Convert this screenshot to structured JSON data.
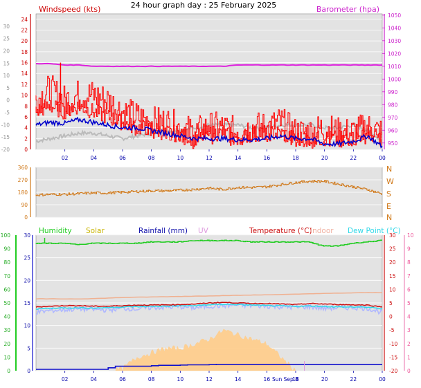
{
  "title": "24 hour graph day : 25 February 2025",
  "x_tick_labels": [
    "02",
    "04",
    "06",
    "08",
    "10",
    "12",
    "14",
    "16",
    "18",
    "20",
    "22",
    "00"
  ],
  "colors": {
    "wind": "#ff0000",
    "gust": "#ff0000",
    "avg_wind": "#0000cc",
    "barometer": "#dd22dd",
    "grey_trace": "#bbbbbb",
    "direction": "#d07818",
    "humidity": "#22cc22",
    "solar": "#c8b400",
    "rainfall": "#1010cc",
    "uv": "#dd99dd",
    "temperature": "#cc1111",
    "indoor": "#f0b090",
    "dew_point": "#30d8e8",
    "lavender": "#b0b8ff",
    "solar_fill": "#ffcc88",
    "plot_bg": "#e0e0e0"
  },
  "chart_data": [
    {
      "type": "line",
      "name": "wind-panel",
      "left_axis_title": "Windspeed (kts)",
      "right_axis_title": "Barometer (hpa)",
      "left_ticks": [
        24,
        22,
        20,
        18,
        16,
        14,
        12,
        10,
        8,
        6,
        4,
        2,
        0
      ],
      "left_ylim": [
        0,
        25
      ],
      "far_left_ticks": [
        30,
        25,
        20,
        15,
        10,
        5,
        0,
        -5,
        -10,
        -15,
        -20
      ],
      "far_left_ylim": [
        -20,
        35
      ],
      "right_ticks": [
        1050,
        1040,
        1030,
        1020,
        1010,
        1000,
        990,
        980,
        970,
        960,
        950
      ],
      "right_ylim": [
        945,
        1051
      ],
      "x_hours": [
        0,
        1,
        2,
        3,
        4,
        5,
        6,
        7,
        8,
        9,
        10,
        11,
        12,
        13,
        14,
        15,
        16,
        17,
        18,
        19,
        20,
        21,
        22,
        23,
        24
      ],
      "series": [
        {
          "key": "gust",
          "values": [
            9,
            11,
            9,
            10,
            10,
            9,
            7,
            6,
            5,
            5,
            4,
            3,
            4,
            4,
            3,
            4,
            4,
            5,
            3,
            3,
            4,
            3,
            3,
            4,
            3
          ]
        },
        {
          "key": "wind",
          "values": [
            7,
            8,
            7,
            8,
            7,
            6,
            5,
            4,
            4,
            3,
            3,
            2,
            3,
            3,
            2,
            3,
            3,
            3,
            2,
            2,
            2,
            2,
            2,
            3,
            2
          ]
        },
        {
          "key": "avg_wind",
          "values": [
            4.5,
            5,
            4.8,
            5.5,
            5,
            4.5,
            4,
            4,
            3.5,
            3,
            2.5,
            2,
            2,
            2,
            1.8,
            1.8,
            2,
            2.5,
            2,
            2,
            1,
            1,
            1.5,
            2.5,
            0.5
          ]
        },
        {
          "key": "barometer",
          "values": [
            1012,
            1012,
            1011,
            1011,
            1010,
            1010,
            1010,
            1010,
            1010,
            1010,
            1010,
            1010,
            1010,
            1010,
            1011,
            1011,
            1011,
            1011,
            1011,
            1011,
            1011,
            1011,
            1011,
            1011,
            1011
          ]
        },
        {
          "key": "grey_trace",
          "values": [
            1.5,
            2,
            2.5,
            3,
            3,
            2.5,
            2,
            2.5,
            3,
            3.5,
            3.5,
            4,
            4.5,
            4.5,
            4.5,
            4,
            4,
            4.5,
            4.5,
            4.5,
            4,
            4,
            4.5,
            3.5,
            1.5
          ]
        }
      ],
      "spike": {
        "hour": 1.7,
        "value": 16
      }
    },
    {
      "type": "line",
      "name": "wind-direction-panel",
      "left_ticks": [
        360,
        270,
        180,
        90,
        0
      ],
      "left_ylim": [
        0,
        360
      ],
      "right_ticks": [
        "N",
        "W",
        "S",
        "E",
        "N"
      ],
      "x_hours": [
        0,
        1,
        2,
        3,
        4,
        5,
        6,
        7,
        8,
        9,
        10,
        11,
        12,
        13,
        14,
        15,
        16,
        17,
        18,
        19,
        20,
        21,
        22,
        23,
        24
      ],
      "series": [
        {
          "key": "direction",
          "values": [
            160,
            165,
            165,
            170,
            175,
            175,
            180,
            185,
            190,
            190,
            195,
            200,
            210,
            200,
            215,
            215,
            220,
            235,
            250,
            260,
            260,
            240,
            220,
            200,
            170
          ]
        }
      ]
    },
    {
      "type": "line",
      "name": "temperature-panel",
      "legend": [
        "Humidity",
        "Solar",
        "Rainfall (mm)",
        "UV",
        "Temperature (°C)",
        "Indoor",
        "Dew Point (°C)"
      ],
      "humidity_ticks": [
        100,
        90,
        80,
        70,
        60,
        50,
        40,
        30,
        20,
        10,
        0
      ],
      "humidity_ylim": [
        0,
        100
      ],
      "rain_ticks": [
        30,
        25,
        20,
        15,
        10,
        5,
        0
      ],
      "rain_ylim": [
        0,
        30
      ],
      "temp_ticks": [
        30,
        25,
        20,
        15,
        10,
        5,
        0,
        -5,
        -10,
        -15,
        -20
      ],
      "temp_ylim": [
        -20,
        30
      ],
      "uv_ticks": [
        10,
        9,
        8,
        7,
        6,
        5,
        4,
        3,
        2,
        1,
        0
      ],
      "uv_ylim": [
        0,
        10
      ],
      "date_marker": "Sun Sep 8",
      "x_hours": [
        0,
        1,
        2,
        3,
        4,
        5,
        6,
        7,
        8,
        9,
        10,
        11,
        12,
        13,
        14,
        15,
        16,
        17,
        18,
        19,
        20,
        21,
        22,
        23,
        24
      ],
      "series": [
        {
          "key": "humidity",
          "values": [
            94,
            94,
            94,
            93,
            94,
            94,
            94,
            94,
            95,
            95,
            95,
            96,
            96,
            96,
            96,
            95,
            95,
            95,
            95,
            95,
            92,
            92,
            94,
            95,
            96
          ]
        },
        {
          "key": "indoor",
          "values": [
            6.5,
            6.5,
            6.5,
            6.5,
            6.6,
            6.8,
            7,
            7.1,
            7.2,
            7.3,
            7.4,
            7.5,
            7.6,
            7.7,
            7.8,
            7.9,
            8,
            8.1,
            8.2,
            8.4,
            8.5,
            8.6,
            8.7,
            8.8,
            8.8
          ]
        },
        {
          "key": "temperature",
          "values": [
            3.5,
            3.8,
            4,
            4,
            3.8,
            3.8,
            4,
            4.2,
            4.2,
            4.3,
            4.4,
            4.6,
            5,
            5.2,
            5,
            4.8,
            4.8,
            4.6,
            4.4,
            4.8,
            4.6,
            4.4,
            4.3,
            4.2,
            3.5
          ]
        },
        {
          "key": "dew_point",
          "values": [
            2.8,
            3,
            3.2,
            3.2,
            3.1,
            3.3,
            3.5,
            3.6,
            3.7,
            3.8,
            3.9,
            4,
            4.3,
            4.5,
            4.4,
            4.2,
            4,
            3.9,
            3.7,
            3.9,
            3.7,
            3.5,
            3.5,
            3.4,
            2.8
          ]
        },
        {
          "key": "lavender",
          "values": [
            1.5,
            2.2,
            2.5,
            2.8,
            2.6,
            2.4,
            3,
            2.8,
            3.3,
            3.4,
            3.6,
            3.2,
            3.8,
            4,
            4.2,
            4,
            3.8,
            3.6,
            3.4,
            3.6,
            3,
            3.2,
            3.3,
            3,
            1.5
          ]
        },
        {
          "key": "rainfall",
          "values": [
            0.3,
            0.3,
            0.3,
            0.3,
            0.3,
            0.3,
            1,
            1,
            1,
            1.2,
            1.2,
            1.3,
            1.3,
            1.4,
            1.4,
            1.4,
            1.4,
            1.4,
            1.4,
            1.4,
            1.4,
            1.4,
            1.4,
            1.4,
            1.4
          ]
        },
        {
          "key": "solar",
          "values": [
            0,
            0,
            0,
            0,
            0,
            0,
            0.5,
            3,
            4,
            5,
            5,
            6,
            7,
            9,
            8,
            7,
            6,
            3,
            0,
            0,
            0,
            0,
            0,
            0,
            0
          ]
        }
      ]
    }
  ]
}
